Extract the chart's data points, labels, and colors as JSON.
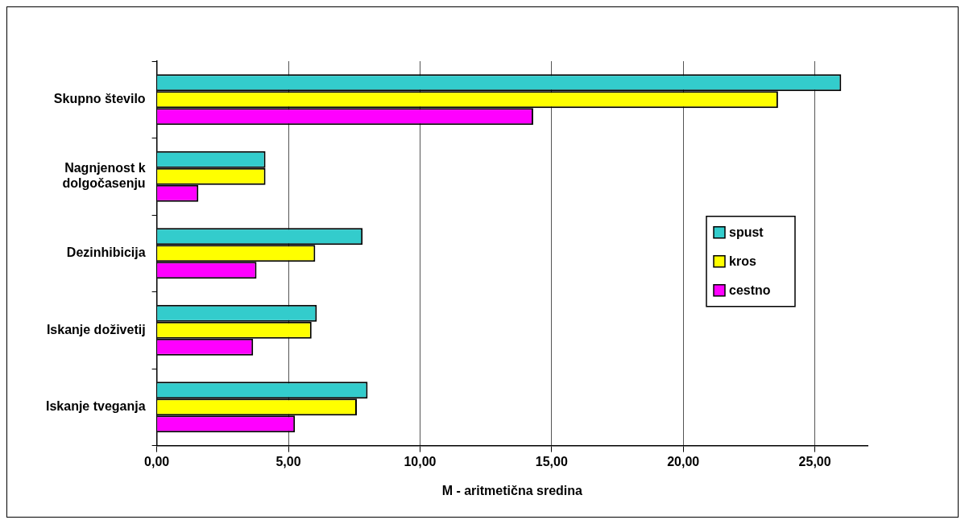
{
  "chart_data": {
    "type": "bar",
    "orientation": "horizontal",
    "xlabel": "M - aritmetična sredina",
    "categories": [
      "Skupno število",
      "Nagnjenost k dolgočasenju",
      "Dezinhibicija",
      "Iskanje doživetij",
      "Iskanje tveganja"
    ],
    "series": [
      {
        "name": "spust",
        "color": "#33cccc",
        "values": [
          26.0,
          4.13,
          7.82,
          6.08,
          8.01
        ]
      },
      {
        "name": "kros",
        "color": "#ffff00",
        "values": [
          23.6,
          4.13,
          6.02,
          5.88,
          7.6
        ]
      },
      {
        "name": "cestno",
        "color": "#ff00ff",
        "values": [
          14.3,
          1.58,
          3.79,
          3.66,
          5.25
        ]
      }
    ],
    "xlim": [
      0,
      27
    ],
    "xticks": [
      {
        "value": 0,
        "label": "0,00"
      },
      {
        "value": 5,
        "label": "5,00"
      },
      {
        "value": 10,
        "label": "10,00"
      },
      {
        "value": 15,
        "label": "15,00"
      },
      {
        "value": 20,
        "label": "20,00"
      },
      {
        "value": 25,
        "label": "25,00"
      }
    ],
    "grid": "x",
    "legend": "right"
  }
}
